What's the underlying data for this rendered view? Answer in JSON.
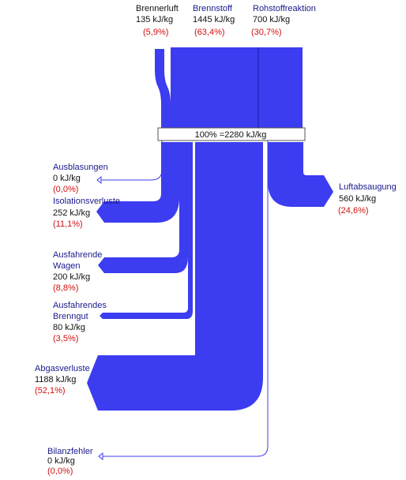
{
  "diagram": {
    "hub_label": "100% =2280 kJ/kg",
    "flow_color": "#3c3cf0",
    "line_color": "#3c3cf0",
    "name_color": "#1a1a8c",
    "percent_color": "#d01010",
    "inputs": [
      {
        "id": "brennerluft",
        "name": "Brennerluft",
        "value": "135 kJ/kg",
        "percent": "(5,9%)"
      },
      {
        "id": "brennstoff",
        "name": "Brennstoff",
        "value": "1445 kJ/kg",
        "percent": "(63,4%)"
      },
      {
        "id": "rohstoffreaktion",
        "name": "Rohstoffreaktion",
        "value": "700 kJ/kg",
        "percent": "(30,7%)"
      }
    ],
    "outputs": [
      {
        "id": "ausblasungen",
        "lines": [
          "Ausblasungen"
        ],
        "value": "0 kJ/kg",
        "percent": "(0,0%)"
      },
      {
        "id": "isolationsverluste",
        "lines": [
          "Isolationsverluste"
        ],
        "value": "252 kJ/kg",
        "percent": "(11,1%)"
      },
      {
        "id": "ausfahrende-wagen",
        "lines": [
          "Ausfahrende",
          "Wagen"
        ],
        "value": "200 kJ/kg",
        "percent": "(8,8%)"
      },
      {
        "id": "ausfahrendes-brenngut",
        "lines": [
          "Ausfahrendes",
          "Brenngut"
        ],
        "value": "80 kJ/kg",
        "percent": "(3,5%)"
      },
      {
        "id": "abgasverluste",
        "lines": [
          "Abgasverluste"
        ],
        "value": "1188 kJ/kg",
        "percent": "(52,1%)"
      },
      {
        "id": "bilanzfehler",
        "lines": [
          "Bilanzfehler"
        ],
        "value": "0 kJ/kg",
        "percent": "(0,0%)"
      },
      {
        "id": "luftabsaugung",
        "lines": [
          "Luftabsaugung"
        ],
        "value": "560 kJ/kg",
        "percent": "(24,6%)"
      }
    ]
  }
}
